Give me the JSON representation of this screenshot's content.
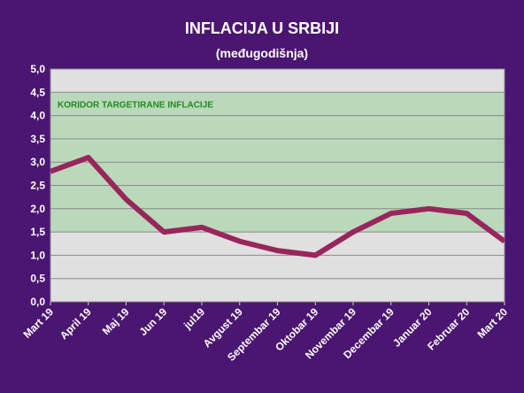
{
  "chart_data": {
    "type": "line",
    "title": "INFLACIJA U SRBIJI",
    "subtitle": "(međugodišnja)",
    "categories": [
      "Mart 19",
      "April 19",
      "Maj 19",
      "Jun 19",
      "jul19",
      "Avgust 19",
      "Septembar 19",
      "Oktobar 19",
      "Novembar 19",
      "Decembar 19",
      "Januar 20",
      "Februar 20",
      "Mart 20"
    ],
    "series": [
      {
        "values": [
          2.8,
          3.1,
          2.2,
          1.5,
          1.6,
          1.3,
          1.1,
          1.0,
          1.5,
          1.9,
          2.0,
          1.9,
          1.3
        ]
      }
    ],
    "ylim": [
      0,
      5
    ],
    "yticks": [
      "0,0",
      "0,5",
      "1,0",
      "1,5",
      "2,0",
      "2,5",
      "3,0",
      "3,5",
      "4,0",
      "4,5",
      "5,0"
    ],
    "target_band": {
      "low": 1.5,
      "high": 4.5,
      "label": "KORIDOR TARGETIRANE INFLACIJE"
    },
    "grid": true,
    "colors": {
      "background": "#4b1572",
      "plot": "#e0e0e0",
      "band": "#bad8ba",
      "line": "#98265c"
    }
  }
}
